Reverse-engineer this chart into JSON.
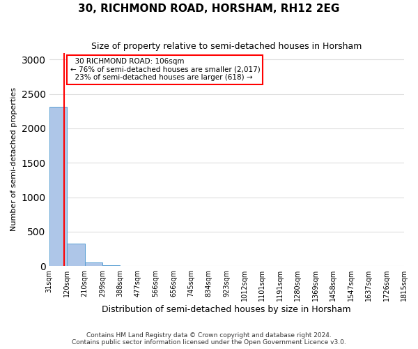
{
  "title": "30, RICHMOND ROAD, HORSHAM, RH12 2EG",
  "subtitle": "Size of property relative to semi-detached houses in Horsham",
  "xlabel": "Distribution of semi-detached houses by size in Horsham",
  "ylabel": "Number of semi-detached properties",
  "bin_labels": [
    "31sqm",
    "120sqm",
    "210sqm",
    "299sqm",
    "388sqm",
    "477sqm",
    "566sqm",
    "656sqm",
    "745sqm",
    "834sqm",
    "923sqm",
    "1012sqm",
    "1101sqm",
    "1191sqm",
    "1280sqm",
    "1369sqm",
    "1458sqm",
    "1547sqm",
    "1637sqm",
    "1726sqm"
  ],
  "bar_values": [
    2310,
    330,
    55,
    10,
    5,
    3,
    2,
    1,
    1,
    1,
    0,
    0,
    0,
    0,
    0,
    0,
    0,
    0,
    0,
    0
  ],
  "bar_color": "#aec6e8",
  "bar_edge_color": "#5a9fd4",
  "property_size": 106,
  "property_label": "30 RICHMOND ROAD: 106sqm",
  "pct_smaller": 76,
  "n_smaller": 2017,
  "pct_larger": 23,
  "n_larger": 618,
  "vline_color": "red",
  "ylim": [
    0,
    3100
  ],
  "yticks": [
    0,
    500,
    1000,
    1500,
    2000,
    2500,
    3000
  ],
  "grid_color": "#dddddd",
  "footer_line1": "Contains HM Land Registry data © Crown copyright and database right 2024.",
  "footer_line2": "Contains public sector information licensed under the Open Government Licence v3.0.",
  "bin_edges": [
    31,
    120,
    210,
    299,
    388,
    477,
    566,
    656,
    745,
    834,
    923,
    1012,
    1101,
    1191,
    1280,
    1369,
    1458,
    1547,
    1637,
    1726,
    1815
  ],
  "last_tick_label": "1815sqm"
}
